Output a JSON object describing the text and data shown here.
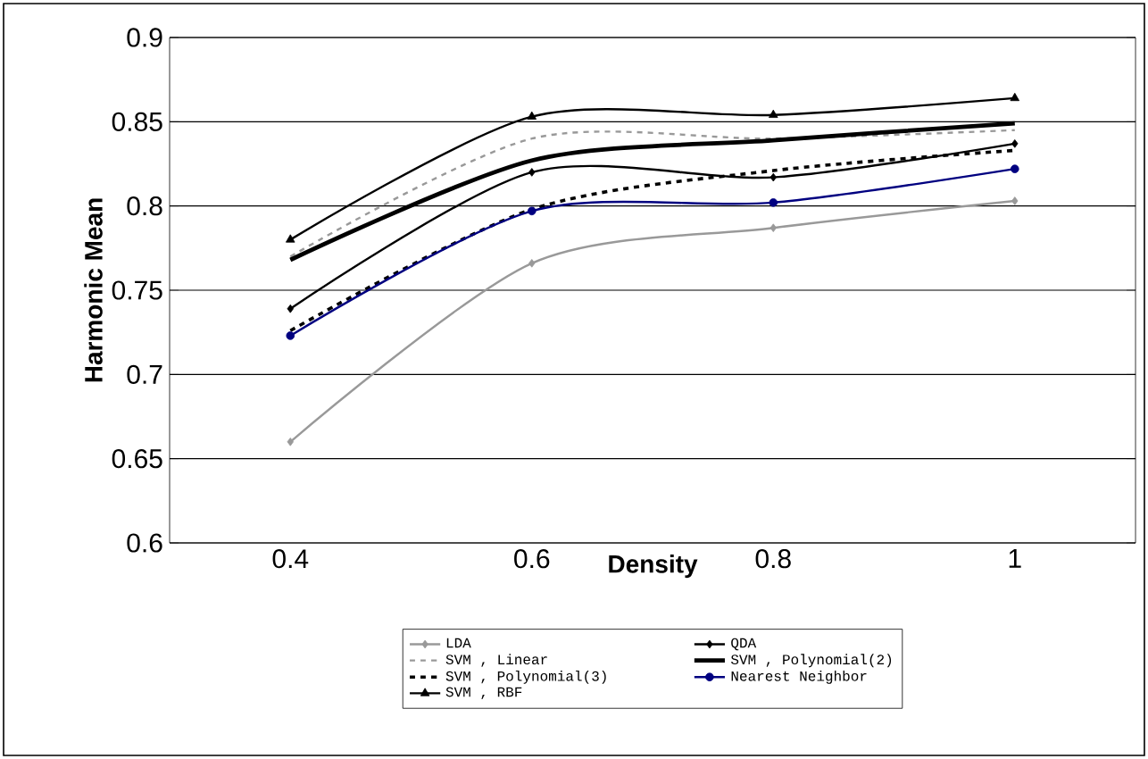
{
  "chart_data": {
    "type": "line",
    "xlabel": "Density",
    "ylabel": "Harmonic Mean",
    "categories": [
      "0.4",
      "0.6",
      "0.8",
      "1"
    ],
    "ylim": [
      0.6,
      0.9
    ],
    "yticks": [
      0.6,
      0.65,
      0.7,
      0.75,
      0.8,
      0.85,
      0.9
    ],
    "grid": "y",
    "legend": "bottom",
    "series": [
      {
        "name": "LDA",
        "color": "#999999",
        "marker": "diamond",
        "line_style": "solid",
        "values": [
          0.66,
          0.766,
          0.787,
          0.803
        ]
      },
      {
        "name": "QDA",
        "color": "#000000",
        "marker": "diamond",
        "line_style": "solid",
        "values": [
          0.739,
          0.82,
          0.817,
          0.837
        ]
      },
      {
        "name": "SVM , Linear",
        "color": "#999999",
        "marker": "none",
        "line_style": "dashed",
        "values": [
          0.77,
          0.84,
          0.84,
          0.845
        ]
      },
      {
        "name": "SVM , Polynomial(2)",
        "color": "#000000",
        "marker": "none",
        "line_style": "solid",
        "values": [
          0.768,
          0.827,
          0.839,
          0.849
        ]
      },
      {
        "name": "SVM , Polynomial(3)",
        "color": "#000000",
        "marker": "none",
        "line_style": "dashed",
        "values": [
          0.726,
          0.798,
          0.821,
          0.833
        ]
      },
      {
        "name": "Nearest Neighbor",
        "color": "#000080",
        "marker": "circle",
        "line_style": "solid",
        "values": [
          0.723,
          0.797,
          0.802,
          0.822
        ]
      },
      {
        "name": "SVM , RBF",
        "color": "#000000",
        "marker": "triangle",
        "line_style": "solid",
        "values": [
          0.78,
          0.853,
          0.854,
          0.864
        ]
      }
    ]
  }
}
